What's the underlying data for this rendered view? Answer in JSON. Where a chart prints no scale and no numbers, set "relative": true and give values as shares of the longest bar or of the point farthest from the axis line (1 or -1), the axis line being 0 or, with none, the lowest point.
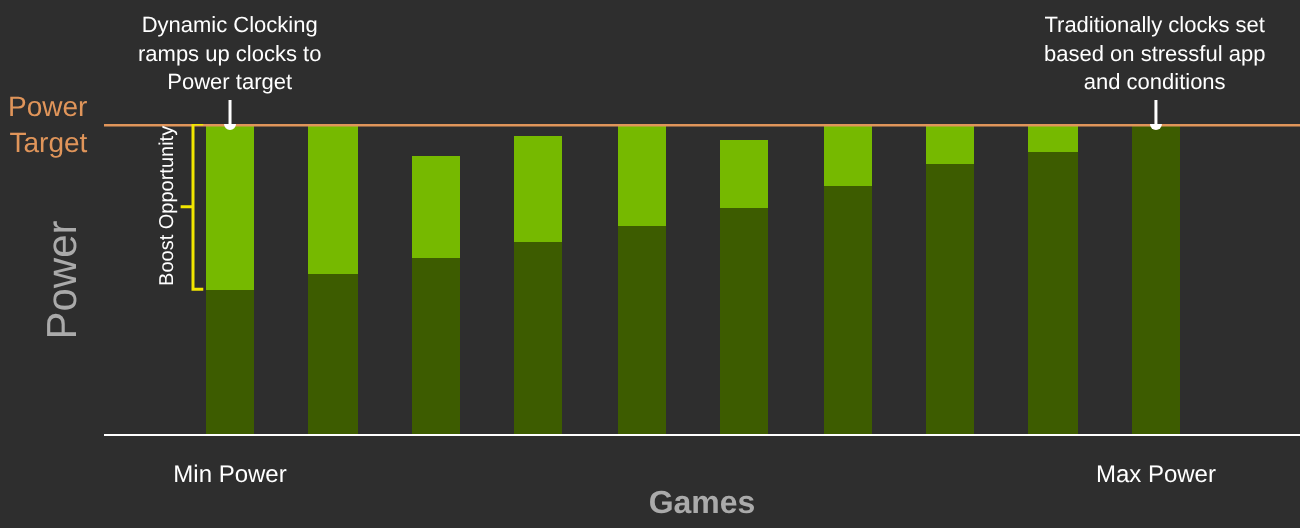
{
  "chart_data": {
    "type": "bar",
    "stacked": true,
    "relative": true,
    "categories": [
      "Min Power",
      null,
      null,
      null,
      null,
      null,
      null,
      null,
      null,
      "Max Power"
    ],
    "xlabel": "Games",
    "ylabel": "Power",
    "series": [
      {
        "color": "#3d5c00",
        "values": [
          0.47,
          0.52,
          0.57,
          0.62,
          0.67,
          0.73,
          0.8,
          0.87,
          0.91,
          1.0
        ]
      },
      {
        "color": "#76b900",
        "values": [
          0.53,
          0.48,
          0.33,
          0.34,
          0.33,
          0.22,
          0.2,
          0.13,
          0.09,
          0
        ]
      }
    ],
    "ref_lines": [
      {
        "axis": "y",
        "value": 1,
        "label": "Power Target",
        "color": "#e0955a"
      }
    ],
    "annotations": [
      {
        "text": "Dynamic Clocking\nramps up clocks to\nPower target",
        "x": "Min Power",
        "y": 1
      },
      "Boost Opportunity",
      {
        "text": "Traditionally clocks set\nbased on stressful app\nand conditions",
        "x": "Max Power",
        "y": 1
      }
    ]
  }
}
